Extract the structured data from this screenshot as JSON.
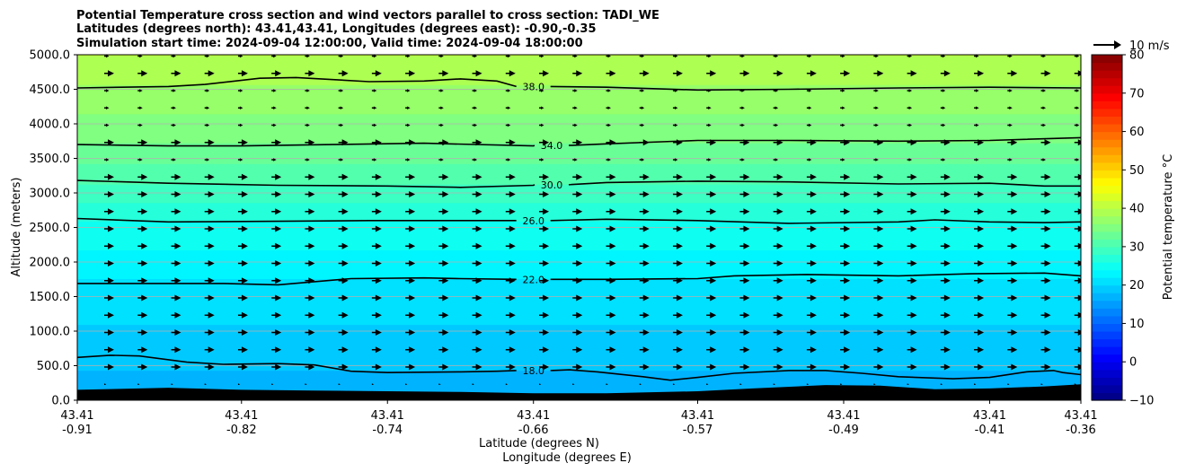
{
  "chart_data": {
    "type": "contour",
    "title_lines": [
      "Potential Temperature cross section and wind vectors parallel to cross section: TADI_WE",
      "Latitudes (degrees north): 43.41,43.41, Longitudes (degrees east): -0.90,-0.35",
      "Simulation start time: 2024-09-04 12:00:00, Valid time: 2024-09-04 18:00:00"
    ],
    "ylabel": "Altitude (meters)",
    "xlabel_lines": [
      "Latitude (degrees N)",
      "Longitude (degrees E)"
    ],
    "ylim": [
      0,
      5000
    ],
    "yticks": [
      "0.0",
      "500.0",
      "1000.0",
      "1500.0",
      "2000.0",
      "2500.0",
      "3000.0",
      "3500.0",
      "4000.0",
      "4500.0",
      "5000.0"
    ],
    "ytick_values": [
      0,
      500,
      1000,
      1500,
      2000,
      2500,
      3000,
      3500,
      4000,
      4500,
      5000
    ],
    "xlim": [
      -0.91,
      -0.36
    ],
    "xtick_values": [
      -0.91,
      -0.82,
      -0.74,
      -0.66,
      -0.57,
      -0.49,
      -0.41,
      -0.36
    ],
    "xtick_labels": [
      [
        "43.41",
        "-0.91"
      ],
      [
        "43.41",
        "-0.82"
      ],
      [
        "43.41",
        "-0.74"
      ],
      [
        "43.41",
        "-0.66"
      ],
      [
        "43.41",
        "-0.57"
      ],
      [
        "43.41",
        "-0.49"
      ],
      [
        "43.41",
        "-0.41"
      ],
      [
        "43.41",
        "-0.36"
      ]
    ],
    "grid": "horizontal",
    "colorbar": {
      "label": "Potential temperature °C",
      "range": [
        -10,
        80
      ],
      "ticks": [
        "−10",
        "0",
        "10",
        "20",
        "30",
        "40",
        "50",
        "60",
        "70",
        "80"
      ],
      "tick_values": [
        -10,
        0,
        10,
        20,
        30,
        40,
        50,
        60,
        70,
        80
      ],
      "colormap": "jet"
    },
    "wind_key": {
      "label": "10 m/s",
      "speed": 10
    },
    "contours": [
      {
        "label": "18.0",
        "level": 18,
        "label_x": -0.66,
        "points": [
          [
            -0.91,
            620
          ],
          [
            -0.892,
            650
          ],
          [
            -0.876,
            640
          ],
          [
            -0.85,
            550
          ],
          [
            -0.83,
            520
          ],
          [
            -0.8,
            530
          ],
          [
            -0.78,
            510
          ],
          [
            -0.76,
            420
          ],
          [
            -0.74,
            400
          ],
          [
            -0.7,
            410
          ],
          [
            -0.68,
            420
          ],
          [
            -0.66,
            430
          ],
          [
            -0.64,
            440
          ],
          [
            -0.625,
            410
          ],
          [
            -0.6,
            340
          ],
          [
            -0.585,
            290
          ],
          [
            -0.57,
            330
          ],
          [
            -0.55,
            390
          ],
          [
            -0.52,
            430
          ],
          [
            -0.5,
            430
          ],
          [
            -0.48,
            390
          ],
          [
            -0.46,
            340
          ],
          [
            -0.43,
            310
          ],
          [
            -0.41,
            330
          ],
          [
            -0.39,
            410
          ],
          [
            -0.375,
            430
          ],
          [
            -0.37,
            400
          ],
          [
            -0.36,
            370
          ]
        ]
      },
      {
        "label": "22.0",
        "level": 22,
        "label_x": -0.66,
        "points": [
          [
            -0.91,
            1690
          ],
          [
            -0.87,
            1690
          ],
          [
            -0.83,
            1690
          ],
          [
            -0.8,
            1670
          ],
          [
            -0.76,
            1760
          ],
          [
            -0.72,
            1770
          ],
          [
            -0.7,
            1760
          ],
          [
            -0.66,
            1750
          ],
          [
            -0.62,
            1750
          ],
          [
            -0.57,
            1760
          ],
          [
            -0.55,
            1800
          ],
          [
            -0.51,
            1820
          ],
          [
            -0.46,
            1800
          ],
          [
            -0.42,
            1830
          ],
          [
            -0.38,
            1840
          ],
          [
            -0.36,
            1800
          ]
        ]
      },
      {
        "label": "26.0",
        "level": 26,
        "label_x": -0.66,
        "points": [
          [
            -0.91,
            2630
          ],
          [
            -0.86,
            2580
          ],
          [
            -0.8,
            2590
          ],
          [
            -0.75,
            2600
          ],
          [
            -0.7,
            2600
          ],
          [
            -0.66,
            2600
          ],
          [
            -0.62,
            2620
          ],
          [
            -0.57,
            2600
          ],
          [
            -0.52,
            2560
          ],
          [
            -0.46,
            2580
          ],
          [
            -0.44,
            2610
          ],
          [
            -0.41,
            2580
          ],
          [
            -0.38,
            2570
          ],
          [
            -0.36,
            2580
          ]
        ]
      },
      {
        "label": "30.0",
        "level": 30,
        "label_x": -0.65,
        "points": [
          [
            -0.91,
            3180
          ],
          [
            -0.86,
            3140
          ],
          [
            -0.8,
            3110
          ],
          [
            -0.74,
            3100
          ],
          [
            -0.7,
            3080
          ],
          [
            -0.66,
            3110
          ],
          [
            -0.62,
            3150
          ],
          [
            -0.57,
            3170
          ],
          [
            -0.52,
            3160
          ],
          [
            -0.46,
            3130
          ],
          [
            -0.41,
            3140
          ],
          [
            -0.38,
            3100
          ],
          [
            -0.36,
            3100
          ]
        ]
      },
      {
        "label": "34.0",
        "level": 34,
        "label_x": -0.65,
        "points": [
          [
            -0.91,
            3700
          ],
          [
            -0.86,
            3680
          ],
          [
            -0.82,
            3680
          ],
          [
            -0.77,
            3700
          ],
          [
            -0.72,
            3720
          ],
          [
            -0.66,
            3680
          ],
          [
            -0.62,
            3710
          ],
          [
            -0.57,
            3760
          ],
          [
            -0.52,
            3760
          ],
          [
            -0.46,
            3750
          ],
          [
            -0.41,
            3760
          ],
          [
            -0.36,
            3800
          ]
        ]
      },
      {
        "label": "38.0",
        "level": 38,
        "label_x": -0.66,
        "points": [
          [
            -0.91,
            4520
          ],
          [
            -0.86,
            4540
          ],
          [
            -0.84,
            4570
          ],
          [
            -0.81,
            4660
          ],
          [
            -0.79,
            4670
          ],
          [
            -0.75,
            4610
          ],
          [
            -0.72,
            4620
          ],
          [
            -0.7,
            4650
          ],
          [
            -0.68,
            4620
          ],
          [
            -0.66,
            4540
          ],
          [
            -0.62,
            4530
          ],
          [
            -0.57,
            4490
          ],
          [
            -0.52,
            4500
          ],
          [
            -0.46,
            4520
          ],
          [
            -0.41,
            4530
          ],
          [
            -0.36,
            4520
          ]
        ]
      }
    ],
    "terrain": [
      [
        -0.91,
        150
      ],
      [
        -0.86,
        180
      ],
      [
        -0.82,
        150
      ],
      [
        -0.78,
        140
      ],
      [
        -0.74,
        130
      ],
      [
        -0.7,
        120
      ],
      [
        -0.66,
        100
      ],
      [
        -0.62,
        100
      ],
      [
        -0.57,
        130
      ],
      [
        -0.54,
        170
      ],
      [
        -0.5,
        220
      ],
      [
        -0.47,
        210
      ],
      [
        -0.44,
        160
      ],
      [
        -0.41,
        170
      ],
      [
        -0.38,
        200
      ],
      [
        -0.36,
        230
      ]
    ],
    "vector_rows": [
      {
        "altitude": 5000,
        "scale": 0.5
      },
      {
        "altitude": 4750,
        "scale": 1
      },
      {
        "altitude": 4500,
        "scale": 0.5
      },
      {
        "altitude": 4250,
        "scale": 0.5
      },
      {
        "altitude": 4000,
        "scale": 0.5
      },
      {
        "altitude": 3750,
        "scale": 1
      },
      {
        "altitude": 3500,
        "scale": 0.5
      },
      {
        "altitude": 3250,
        "scale": 1
      },
      {
        "altitude": 3000,
        "scale": 1
      },
      {
        "altitude": 2750,
        "scale": 1
      },
      {
        "altitude": 2500,
        "scale": 1
      },
      {
        "altitude": 2250,
        "scale": 1
      },
      {
        "altitude": 2000,
        "scale": 1
      },
      {
        "altitude": 1750,
        "scale": 1
      },
      {
        "altitude": 1500,
        "scale": 1
      },
      {
        "altitude": 1250,
        "scale": 1
      },
      {
        "altitude": 1000,
        "scale": 1
      },
      {
        "altitude": 750,
        "scale": 1
      },
      {
        "altitude": 500,
        "scale": 1
      },
      {
        "altitude": 250,
        "scale": 0.2
      }
    ],
    "vector_columns": 31
  }
}
